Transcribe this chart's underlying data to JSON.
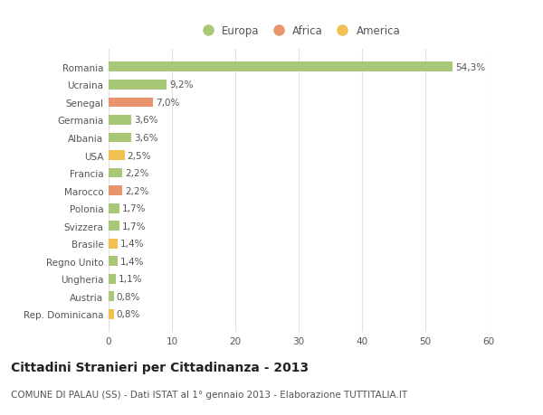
{
  "categories": [
    "Rep. Dominicana",
    "Austria",
    "Ungheria",
    "Regno Unito",
    "Brasile",
    "Svizzera",
    "Polonia",
    "Marocco",
    "Francia",
    "USA",
    "Albania",
    "Germania",
    "Senegal",
    "Ucraina",
    "Romania"
  ],
  "values": [
    0.8,
    0.8,
    1.1,
    1.4,
    1.4,
    1.7,
    1.7,
    2.2,
    2.2,
    2.5,
    3.6,
    3.6,
    7.0,
    9.2,
    54.3
  ],
  "colors": [
    "#f0c050",
    "#a8c878",
    "#a8c878",
    "#a8c878",
    "#f0c050",
    "#a8c878",
    "#a8c878",
    "#e8956d",
    "#a8c878",
    "#f0c050",
    "#a8c878",
    "#a8c878",
    "#e8956d",
    "#a8c878",
    "#a8c878"
  ],
  "labels": [
    "0,8%",
    "0,8%",
    "1,1%",
    "1,4%",
    "1,4%",
    "1,7%",
    "1,7%",
    "2,2%",
    "2,2%",
    "2,5%",
    "3,6%",
    "3,6%",
    "7,0%",
    "9,2%",
    "54,3%"
  ],
  "legend": [
    {
      "label": "Europa",
      "color": "#a8c878"
    },
    {
      "label": "Africa",
      "color": "#e8956d"
    },
    {
      "label": "America",
      "color": "#f0c050"
    }
  ],
  "title": "Cittadini Stranieri per Cittadinanza - 2013",
  "subtitle": "COMUNE DI PALAU (SS) - Dati ISTAT al 1° gennaio 2013 - Elaborazione TUTTITALIA.IT",
  "xlim": [
    0,
    60
  ],
  "xticks": [
    0,
    10,
    20,
    30,
    40,
    50,
    60
  ],
  "background_color": "#ffffff",
  "grid_color": "#e0e0e0",
  "bar_height": 0.55,
  "label_fontsize": 7.5,
  "title_fontsize": 10,
  "subtitle_fontsize": 7.5,
  "tick_fontsize": 7.5,
  "legend_fontsize": 8.5,
  "text_color": "#555555",
  "title_color": "#222222",
  "subtitle_color": "#555555"
}
